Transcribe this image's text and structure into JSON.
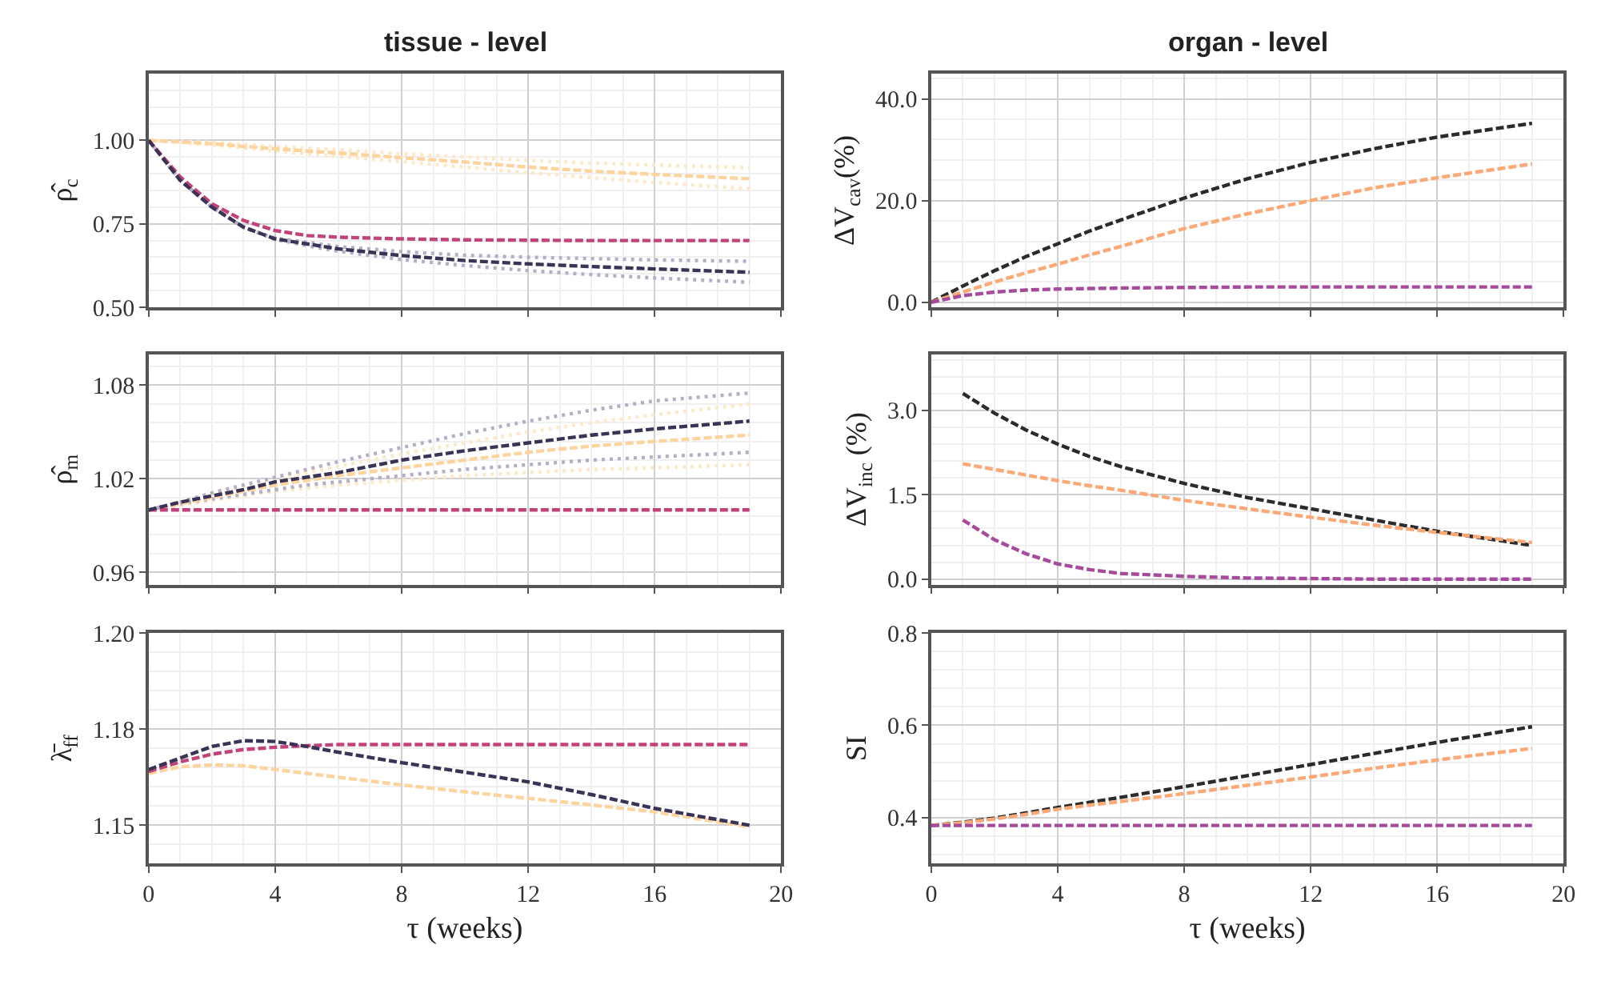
{
  "chart_data": [
    {
      "type": "line",
      "title": "tissue - level",
      "ylabel": "ρ̂$_{c}$",
      "xlim": [
        0,
        20
      ],
      "xticks": [
        0,
        4,
        8,
        12,
        16,
        20
      ],
      "ylim": [
        0.5,
        1.2
      ],
      "yticks": [
        {
          "value": 0.5,
          "label": "0.50"
        },
        0.75,
        {
          "value": 1.0,
          "label": "1.00"
        }
      ],
      "tick_labels": "y",
      "grid": true,
      "line_style": "dashed",
      "x": [
        0,
        1,
        2,
        3,
        4,
        5,
        6,
        8,
        10,
        12,
        14,
        16,
        19
      ],
      "series": [
        {
          "color": "#fde8c8",
          "line_style": "dotted",
          "values": [
            1.0,
            0.993,
            0.986,
            0.977,
            0.968,
            0.96,
            0.952,
            0.936,
            0.92,
            0.903,
            0.888,
            0.874,
            0.855
          ]
        },
        {
          "color": "#fde8c8",
          "line_style": "dotted",
          "values": [
            1.0,
            0.997,
            0.994,
            0.988,
            0.982,
            0.976,
            0.972,
            0.96,
            0.95,
            0.94,
            0.932,
            0.926,
            0.918
          ]
        },
        {
          "color": "#b5aec6",
          "line_style": "dotted",
          "values": [
            1.0,
            0.88,
            0.8,
            0.74,
            0.703,
            0.685,
            0.668,
            0.643,
            0.625,
            0.61,
            0.598,
            0.588,
            0.575
          ]
        },
        {
          "color": "#b5aec6",
          "line_style": "dotted",
          "values": [
            1.0,
            0.88,
            0.8,
            0.74,
            0.707,
            0.695,
            0.682,
            0.667,
            0.656,
            0.65,
            0.646,
            0.642,
            0.638
          ]
        },
        {
          "color": "#fdd49e",
          "values": [
            1.0,
            0.995,
            0.99,
            0.982,
            0.975,
            0.968,
            0.962,
            0.948,
            0.935,
            0.92,
            0.908,
            0.898,
            0.885
          ]
        },
        {
          "color": "#c2437a",
          "values": [
            1.0,
            0.89,
            0.81,
            0.76,
            0.73,
            0.715,
            0.71,
            0.705,
            0.702,
            0.701,
            0.7,
            0.7,
            0.7
          ]
        },
        {
          "color": "#3b3355",
          "values": [
            1.0,
            0.88,
            0.8,
            0.74,
            0.705,
            0.69,
            0.675,
            0.655,
            0.64,
            0.63,
            0.622,
            0.615,
            0.605
          ]
        }
      ]
    },
    {
      "type": "line",
      "title": "organ - level",
      "ylabel": "ΔV$_{cav}$(%)",
      "xlim": [
        0,
        20
      ],
      "xticks": [
        0,
        4,
        8,
        12,
        16,
        20
      ],
      "ylim": [
        -1,
        45
      ],
      "yticks": [
        {
          "value": 0,
          "label": "0.0"
        },
        {
          "value": 20,
          "label": "20.0"
        },
        {
          "value": 40,
          "label": "40.0"
        }
      ],
      "tick_labels": "y",
      "grid": true,
      "line_style": "dashed",
      "x": [
        0,
        1,
        2,
        3,
        4,
        5,
        6,
        8,
        10,
        12,
        14,
        16,
        19
      ],
      "series": [
        {
          "color": "#2b2b2b",
          "values": [
            0,
            3.2,
            6.2,
            9.0,
            11.5,
            14.0,
            16.2,
            20.5,
            24.3,
            27.5,
            30.2,
            32.5,
            35.2
          ]
        },
        {
          "color": "#fca877",
          "values": [
            0,
            2.0,
            4.0,
            5.8,
            7.5,
            9.3,
            11.0,
            14.5,
            17.4,
            20.0,
            22.5,
            24.5,
            27.2
          ]
        },
        {
          "color": "#a64a9d",
          "values": [
            0,
            1.3,
            2.0,
            2.4,
            2.6,
            2.7,
            2.8,
            2.9,
            3.0,
            3.0,
            3.0,
            3.0,
            3.0
          ]
        }
      ]
    },
    {
      "type": "line",
      "ylabel": "ρ̂$_{m}$",
      "xlim": [
        0,
        20
      ],
      "xticks": [
        0,
        4,
        8,
        12,
        16,
        20
      ],
      "ylim": [
        0.952,
        1.1
      ],
      "yticks": [
        0.96,
        1.02,
        1.08
      ],
      "tick_labels": "y",
      "grid": true,
      "line_style": "dashed",
      "x": [
        0,
        1,
        2,
        3,
        4,
        5,
        6,
        8,
        10,
        12,
        14,
        16,
        19
      ],
      "series": [
        {
          "color": "#fde8c8",
          "line_style": "dotted",
          "values": [
            1.0,
            1.003,
            1.006,
            1.009,
            1.012,
            1.014,
            1.016,
            1.019,
            1.022,
            1.024,
            1.026,
            1.027,
            1.029
          ]
        },
        {
          "color": "#fde8c8",
          "line_style": "dotted",
          "values": [
            1.0,
            1.005,
            1.01,
            1.015,
            1.02,
            1.024,
            1.028,
            1.036,
            1.043,
            1.05,
            1.056,
            1.061,
            1.068
          ]
        },
        {
          "color": "#b5aec6",
          "line_style": "dotted",
          "values": [
            1.0,
            1.004,
            1.007,
            1.01,
            1.013,
            1.016,
            1.018,
            1.022,
            1.026,
            1.029,
            1.032,
            1.034,
            1.037
          ]
        },
        {
          "color": "#b5aec6",
          "line_style": "dotted",
          "values": [
            1.0,
            1.005,
            1.011,
            1.016,
            1.021,
            1.026,
            1.031,
            1.04,
            1.049,
            1.057,
            1.064,
            1.07,
            1.075
          ]
        },
        {
          "color": "#fdd49e",
          "values": [
            1.0,
            1.004,
            1.008,
            1.012,
            1.016,
            1.019,
            1.022,
            1.027,
            1.032,
            1.037,
            1.041,
            1.044,
            1.048
          ]
        },
        {
          "color": "#c2437a",
          "values": [
            1.0,
            1.0,
            1.0,
            1.0,
            1.0,
            1.0,
            1.0,
            1.0,
            1.0,
            1.0,
            1.0,
            1.0,
            1.0
          ]
        },
        {
          "color": "#3b3355",
          "values": [
            1.0,
            1.005,
            1.009,
            1.013,
            1.018,
            1.021,
            1.024,
            1.032,
            1.038,
            1.043,
            1.048,
            1.052,
            1.057
          ]
        }
      ]
    },
    {
      "type": "line",
      "ylabel": "ΔV$_{inc}$ (%)",
      "xlim": [
        0,
        20
      ],
      "xticks": [
        0,
        4,
        8,
        12,
        16,
        20
      ],
      "ylim": [
        -0.1,
        4
      ],
      "yticks": [
        {
          "value": 0,
          "label": "0.0"
        },
        1.5,
        {
          "value": 3,
          "label": "3.0"
        }
      ],
      "tick_labels": "y",
      "grid": true,
      "line_style": "dashed",
      "x": [
        1,
        2,
        3,
        4,
        5,
        6,
        8,
        10,
        12,
        14,
        16,
        19
      ],
      "series": [
        {
          "color": "#2b2b2b",
          "values": [
            3.3,
            2.95,
            2.65,
            2.4,
            2.18,
            2.0,
            1.7,
            1.45,
            1.25,
            1.05,
            0.85,
            0.6
          ]
        },
        {
          "color": "#fca877",
          "values": [
            2.05,
            1.95,
            1.85,
            1.75,
            1.66,
            1.58,
            1.4,
            1.25,
            1.1,
            0.96,
            0.83,
            0.65
          ]
        },
        {
          "color": "#a64a9d",
          "values": [
            1.05,
            0.7,
            0.45,
            0.27,
            0.17,
            0.1,
            0.05,
            0.02,
            0.01,
            0.0,
            0.0,
            0.0
          ]
        }
      ]
    },
    {
      "type": "line",
      "xlabel": "τ (weeks)",
      "ylabel": "λ̄$_{ff}$",
      "xlim": [
        0,
        20
      ],
      "xticks": [
        0,
        4,
        8,
        12,
        16,
        20
      ],
      "ylim": [
        1.14,
        1.2
      ],
      "yticks": [
        1.15,
        {
          "value": 1.175,
          "label": "1.18"
        },
        {
          "value": 1.2,
          "label": "1.20"
        }
      ],
      "grid": true,
      "line_style": "dashed",
      "x": [
        0,
        1,
        2,
        3,
        4,
        5,
        6,
        8,
        10,
        12,
        14,
        16,
        19
      ],
      "series": [
        {
          "color": "#fdd49e",
          "values": [
            1.1635,
            1.1652,
            1.1657,
            1.1655,
            1.1645,
            1.1635,
            1.1625,
            1.1605,
            1.1587,
            1.157,
            1.1553,
            1.1535,
            1.1496
          ]
        },
        {
          "color": "#c2437a",
          "values": [
            1.164,
            1.1665,
            1.1685,
            1.1697,
            1.1703,
            1.1707,
            1.171,
            1.171,
            1.171,
            1.171,
            1.171,
            1.171,
            1.171
          ]
        },
        {
          "color": "#3b3355",
          "values": [
            1.1645,
            1.1675,
            1.1705,
            1.172,
            1.1718,
            1.1705,
            1.169,
            1.1663,
            1.1638,
            1.1613,
            1.158,
            1.1544,
            1.15
          ]
        }
      ]
    },
    {
      "type": "line",
      "xlabel": "τ (weeks)",
      "ylabel": "SI",
      "xlim": [
        0,
        20
      ],
      "xticks": [
        0,
        4,
        8,
        12,
        16,
        20
      ],
      "ylim": [
        0.3,
        0.8
      ],
      "yticks": [
        0.4,
        0.6,
        0.8
      ],
      "grid": true,
      "line_style": "dashed",
      "x": [
        0,
        1,
        2,
        3,
        4,
        5,
        6,
        8,
        10,
        12,
        14,
        16,
        19
      ],
      "series": [
        {
          "color": "#2b2b2b",
          "values": [
            0.383,
            0.39,
            0.399,
            0.41,
            0.422,
            0.433,
            0.444,
            0.467,
            0.491,
            0.515,
            0.539,
            0.563,
            0.597
          ]
        },
        {
          "color": "#fca877",
          "values": [
            0.383,
            0.389,
            0.397,
            0.407,
            0.418,
            0.427,
            0.435,
            0.452,
            0.47,
            0.488,
            0.507,
            0.525,
            0.55
          ]
        },
        {
          "color": "#a64a9d",
          "values": [
            0.383,
            0.383,
            0.383,
            0.383,
            0.383,
            0.383,
            0.383,
            0.383,
            0.383,
            0.383,
            0.383,
            0.383,
            0.383
          ]
        }
      ]
    }
  ]
}
